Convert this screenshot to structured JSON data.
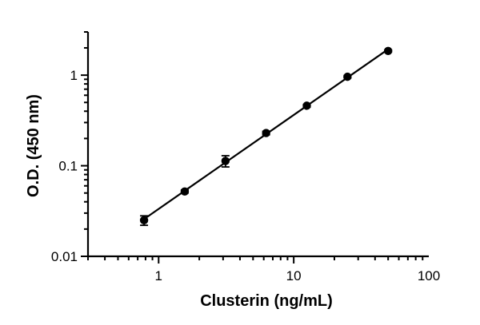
{
  "chart_data": {
    "type": "scatter",
    "title": "",
    "xlabel": "Clusterin (ng/mL)",
    "ylabel": "O.D. (450 nm)",
    "x_scale": "log",
    "y_scale": "log",
    "xlim": [
      0.3,
      100
    ],
    "ylim": [
      0.01,
      3
    ],
    "x_ticks": [
      {
        "value": 1,
        "label": "1"
      },
      {
        "value": 10,
        "label": "10"
      },
      {
        "value": 100,
        "label": "100"
      }
    ],
    "y_ticks": [
      {
        "value": 0.01,
        "label": "0.01"
      },
      {
        "value": 0.1,
        "label": "0.1"
      },
      {
        "value": 1,
        "label": "1"
      }
    ],
    "grid": false,
    "legend": "none",
    "fit_line": true,
    "series": [
      {
        "x": [
          0.78,
          1.56,
          3.125,
          6.25,
          12.5,
          25,
          50
        ],
        "y": [
          0.025,
          0.052,
          0.113,
          0.23,
          0.46,
          0.96,
          1.85
        ],
        "y_err": [
          0.003,
          0.002,
          0.016,
          0.01,
          0.015,
          0.03,
          0.05
        ]
      }
    ]
  }
}
